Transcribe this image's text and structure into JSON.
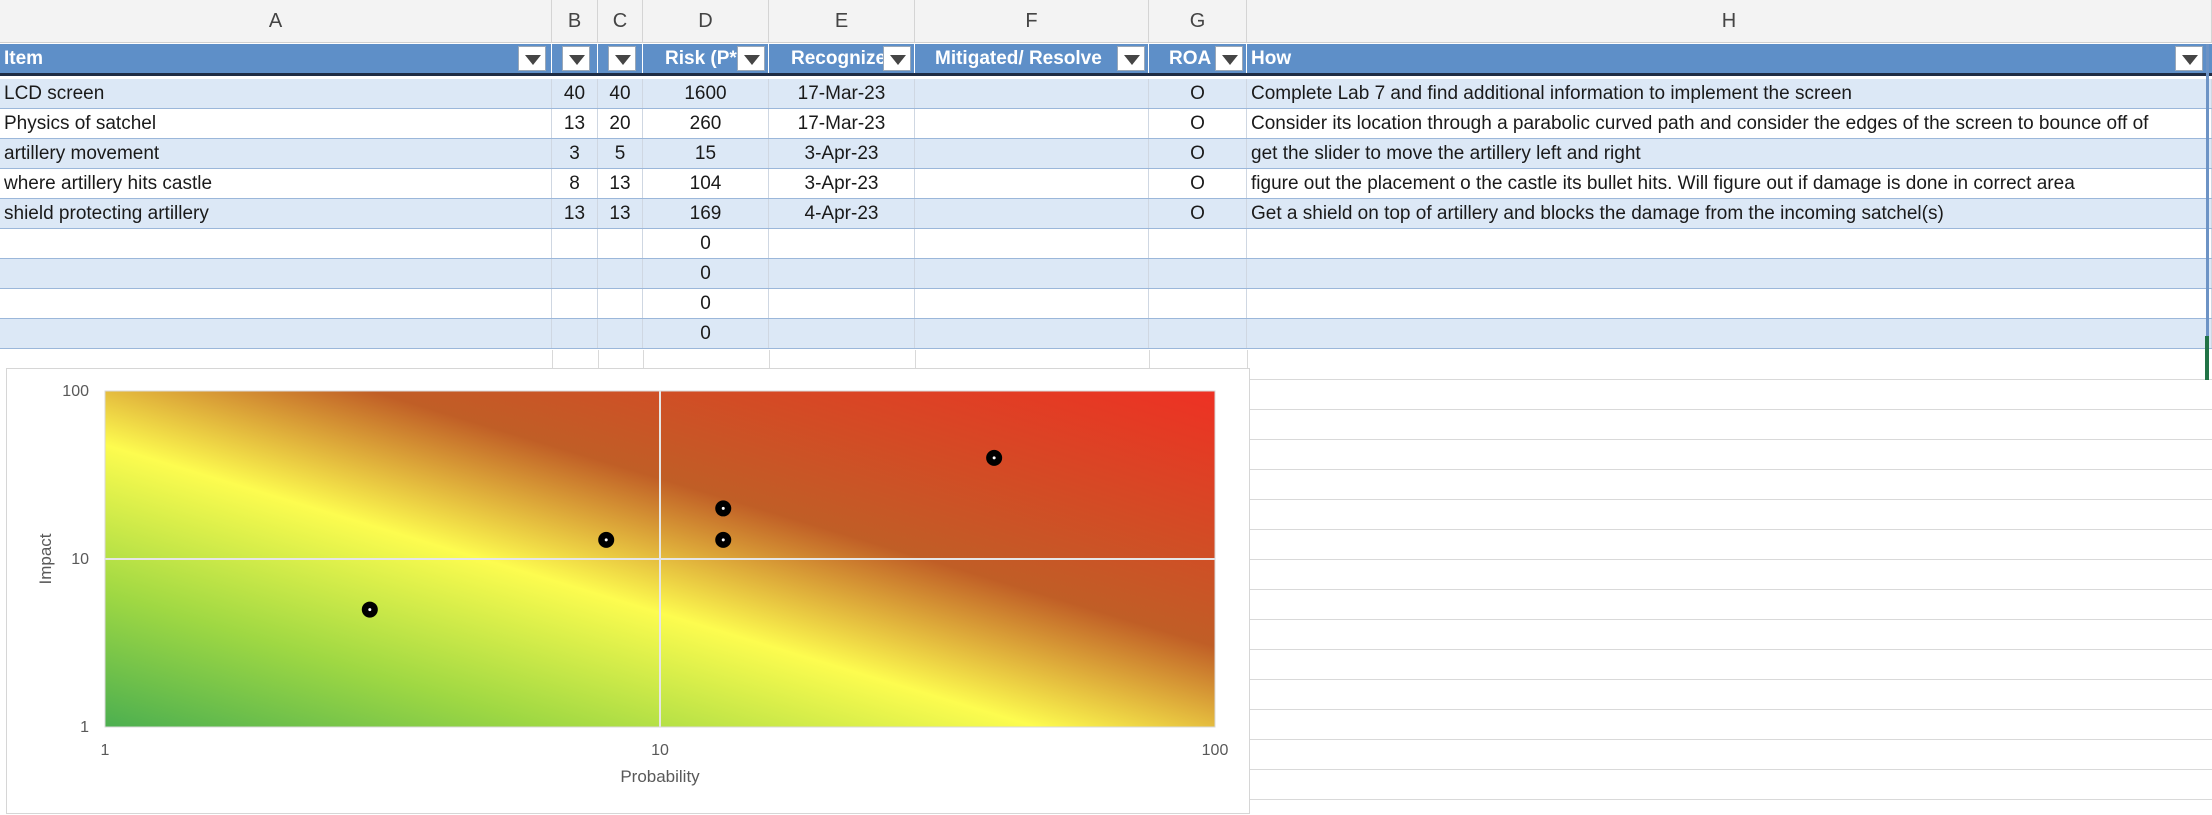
{
  "column_letters": [
    "A",
    "B",
    "C",
    "D",
    "E",
    "F",
    "G",
    "H"
  ],
  "headers": [
    "Item",
    "",
    "",
    "Risk (P*",
    "Recognize",
    "Mitigated/ Resolve",
    "ROA",
    "How"
  ],
  "rows": [
    {
      "item": "LCD screen",
      "b": "40",
      "c": "40",
      "risk": "1600",
      "recognized": "17-Mar-23",
      "mitigated": "",
      "roam": "O",
      "how": "Complete Lab 7 and find additional information to implement the screen"
    },
    {
      "item": "Physics of satchel",
      "b": "13",
      "c": "20",
      "risk": "260",
      "recognized": "17-Mar-23",
      "mitigated": "",
      "roam": "O",
      "how": "Consider its location through a parabolic curved path and consider the edges of the screen to bounce off of"
    },
    {
      "item": "artillery movement",
      "b": "3",
      "c": "5",
      "risk": "15",
      "recognized": "3-Apr-23",
      "mitigated": "",
      "roam": "O",
      "how": "get the slider to move the artillery left and right"
    },
    {
      "item": "where artillery hits castle",
      "b": "8",
      "c": "13",
      "risk": "104",
      "recognized": "3-Apr-23",
      "mitigated": "",
      "roam": "O",
      "how": "figure out the placement o the castle its bullet hits. Will figure out if damage is done in correct area"
    },
    {
      "item": "shield protecting artillery",
      "b": "13",
      "c": "13",
      "risk": "169",
      "recognized": "4-Apr-23",
      "mitigated": "",
      "roam": "O",
      "how": "Get a shield on top of artillery and blocks the damage from the incoming satchel(s)"
    },
    {
      "item": "",
      "b": "",
      "c": "",
      "risk": "0",
      "recognized": "",
      "mitigated": "",
      "roam": "",
      "how": ""
    },
    {
      "item": "",
      "b": "",
      "c": "",
      "risk": "0",
      "recognized": "",
      "mitigated": "",
      "roam": "",
      "how": ""
    },
    {
      "item": "",
      "b": "",
      "c": "",
      "risk": "0",
      "recognized": "",
      "mitigated": "",
      "roam": "",
      "how": ""
    },
    {
      "item": "",
      "b": "",
      "c": "",
      "risk": "0",
      "recognized": "",
      "mitigated": "",
      "roam": "",
      "how": ""
    }
  ],
  "chart_data": {
    "type": "scatter",
    "title": "",
    "xlabel": "Probability",
    "ylabel": "Impact",
    "xscale": "log",
    "yscale": "log",
    "xlim": [
      1,
      100
    ],
    "ylim": [
      1,
      100
    ],
    "xticks": [
      "1",
      "10",
      "100"
    ],
    "yticks": [
      "1",
      "10",
      "100"
    ],
    "grid": true,
    "background": "green-yellow-red heatmap gradient",
    "series": [
      {
        "x": [
          40,
          13,
          3,
          8,
          13
        ],
        "y": [
          40,
          20,
          5,
          13,
          13
        ],
        "color": "#000000"
      }
    ]
  }
}
